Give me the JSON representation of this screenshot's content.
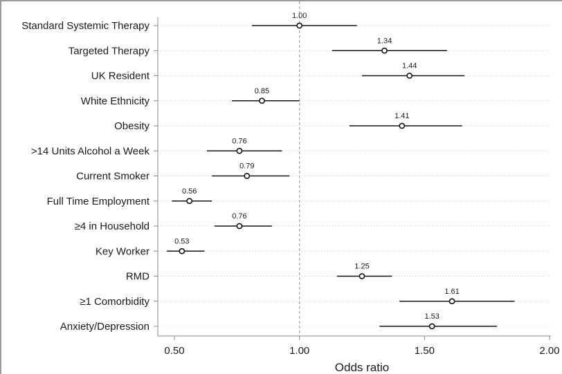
{
  "chart_data": {
    "type": "forest",
    "xlabel": "Odds ratio",
    "xlim": [
      0.5,
      2.0
    ],
    "xticks": [
      0.5,
      1.0,
      1.5,
      2.0
    ],
    "xtick_labels": [
      "0.50",
      "1.00",
      "1.50",
      "2.00"
    ],
    "reference_line": 1.0,
    "grid": "dotted horizontal",
    "categories": [
      "Standard Systemic Therapy",
      "Targeted Therapy",
      "UK Resident",
      "White Ethnicity",
      "Obesity",
      ">14 Units Alcohol a Week",
      "Current Smoker",
      "Full Time Employment",
      "≥4 in Household",
      "Key Worker",
      "RMD",
      "≥1 Comorbidity",
      "Anxiety/Depression"
    ],
    "values": [
      1.0,
      1.34,
      1.44,
      0.85,
      1.41,
      0.76,
      0.79,
      0.56,
      0.76,
      0.53,
      1.25,
      1.61,
      1.53
    ],
    "value_labels": [
      "1.00",
      "1.34",
      "1.44",
      "0.85",
      "1.41",
      "0.76",
      "0.79",
      "0.56",
      "0.76",
      "0.53",
      "1.25",
      "1.61",
      "1.53"
    ],
    "ci_lower": [
      0.81,
      1.13,
      1.25,
      0.73,
      1.2,
      0.63,
      0.65,
      0.49,
      0.66,
      0.47,
      1.15,
      1.4,
      1.32
    ],
    "ci_upper": [
      1.23,
      1.59,
      1.66,
      1.0,
      1.65,
      0.93,
      0.96,
      0.65,
      0.89,
      0.62,
      1.37,
      1.86,
      1.79
    ],
    "colors": {
      "marker": "#111111",
      "ci_line": "#111111",
      "reference_line": "#c9909c",
      "grid": "#cfcfcf",
      "axis": "#8a8a8a"
    }
  }
}
